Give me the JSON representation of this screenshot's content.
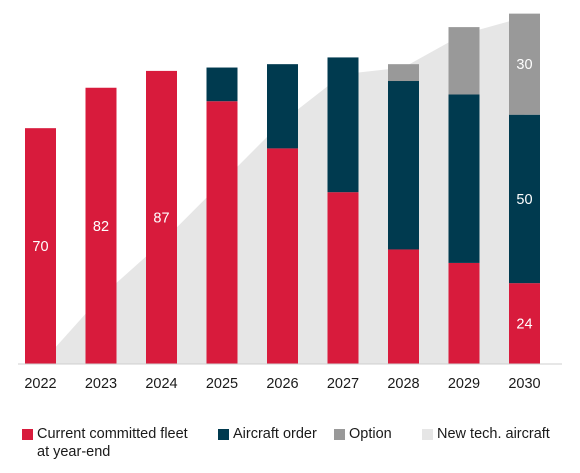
{
  "chart_data": {
    "type": "bar",
    "stacked": true,
    "categories": [
      "2022",
      "2023",
      "2024",
      "2025",
      "2026",
      "2027",
      "2028",
      "2029",
      "2030"
    ],
    "ylim": [
      0,
      103
    ],
    "grid": false,
    "legend_position": "bottom",
    "series": [
      {
        "name": "Current committed fleet at year-end",
        "color": "#d81b3c",
        "values": [
          70,
          82,
          87,
          78,
          64,
          51,
          34,
          30,
          24
        ],
        "labels": [
          "70",
          "82",
          "87",
          "",
          "",
          "",
          "",
          "",
          "24"
        ]
      },
      {
        "name": "Aircraft order",
        "color": "#003a4f",
        "values": [
          0,
          0,
          0,
          10,
          25,
          40,
          50,
          50,
          50
        ],
        "labels": [
          "",
          "",
          "",
          "",
          "",
          "",
          "",
          "",
          "50"
        ]
      },
      {
        "name": "Option",
        "color": "#999999",
        "values": [
          0,
          0,
          0,
          0,
          0,
          0,
          5,
          20,
          30
        ],
        "labels": [
          "",
          "",
          "",
          "",
          "",
          "",
          "",
          "",
          "30"
        ]
      }
    ],
    "area": {
      "name": "New tech. aircraft",
      "color": "#e6e6e6",
      "values": [
        0,
        20,
        36,
        54,
        72,
        86,
        88,
        98,
        103
      ]
    }
  },
  "legend": {
    "fleet_label": "Current committed fleet\nat year-end",
    "order_label": "Aircraft order",
    "option_label": "Option",
    "newtech_label": "New tech. aircraft"
  }
}
